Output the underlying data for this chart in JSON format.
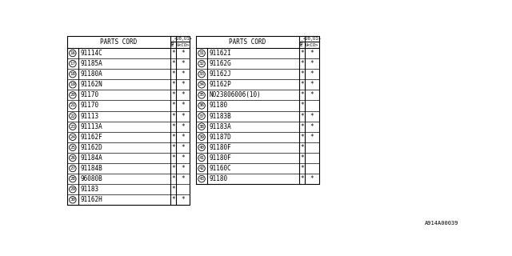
{
  "bg_color": "#ffffff",
  "table_border_color": "#000000",
  "font_color": "#000000",
  "font_size": 5.5,
  "footnote": "A914A00039",
  "left_table": {
    "rows": [
      {
        "num": "16",
        "part": "91114C",
        "c1": "*",
        "c2": "*"
      },
      {
        "num": "17",
        "part": "91185A",
        "c1": "*",
        "c2": "*"
      },
      {
        "num": "18",
        "part": "91180A",
        "c1": "*",
        "c2": "*"
      },
      {
        "num": "19",
        "part": "91162N",
        "c1": "*",
        "c2": "*"
      },
      {
        "num": "20",
        "part": "91170",
        "c1": "*",
        "c2": "*"
      },
      {
        "num": "21",
        "part": "91170",
        "c1": "*",
        "c2": "*"
      },
      {
        "num": "22",
        "part": "91113",
        "c1": "*",
        "c2": "*"
      },
      {
        "num": "23",
        "part": "91113A",
        "c1": "*",
        "c2": "*"
      },
      {
        "num": "24",
        "part": "91162F",
        "c1": "*",
        "c2": "*"
      },
      {
        "num": "25",
        "part": "91162D",
        "c1": "*",
        "c2": "*"
      },
      {
        "num": "26",
        "part": "91184A",
        "c1": "*",
        "c2": "*"
      },
      {
        "num": "27",
        "part": "91184B",
        "c1": "*",
        "c2": "*"
      },
      {
        "num": "28",
        "part": "96080B",
        "c1": "*",
        "c2": "*"
      },
      {
        "num": "29",
        "part": "91183",
        "c1": "*",
        "c2": ""
      },
      {
        "num": "30",
        "part": "91162H",
        "c1": "*",
        "c2": "*"
      }
    ]
  },
  "right_table": {
    "rows": [
      {
        "num": "31",
        "part": "91162I",
        "c1": "*",
        "c2": "*"
      },
      {
        "num": "32",
        "part": "91162G",
        "c1": "*",
        "c2": "*"
      },
      {
        "num": "33",
        "part": "91162J",
        "c1": "*",
        "c2": "*"
      },
      {
        "num": "34",
        "part": "91162P",
        "c1": "*",
        "c2": "*"
      },
      {
        "num": "35",
        "part": "N023806006(10)",
        "c1": "*",
        "c2": "*"
      },
      {
        "num": "36",
        "part": "91180",
        "c1": "*",
        "c2": ""
      },
      {
        "num": "37",
        "part": "91183B",
        "c1": "*",
        "c2": "*"
      },
      {
        "num": "38",
        "part": "91183A",
        "c1": "*",
        "c2": "*"
      },
      {
        "num": "39",
        "part": "91187D",
        "c1": "*",
        "c2": "*"
      },
      {
        "num": "40",
        "part": "91180F",
        "c1": "*",
        "c2": ""
      },
      {
        "num": "41",
        "part": "91180F",
        "c1": "*",
        "c2": ""
      },
      {
        "num": "42",
        "part": "91160C",
        "c1": "*",
        "c2": ""
      },
      {
        "num": "43",
        "part": "91180",
        "c1": "*",
        "c2": "*"
      }
    ]
  }
}
